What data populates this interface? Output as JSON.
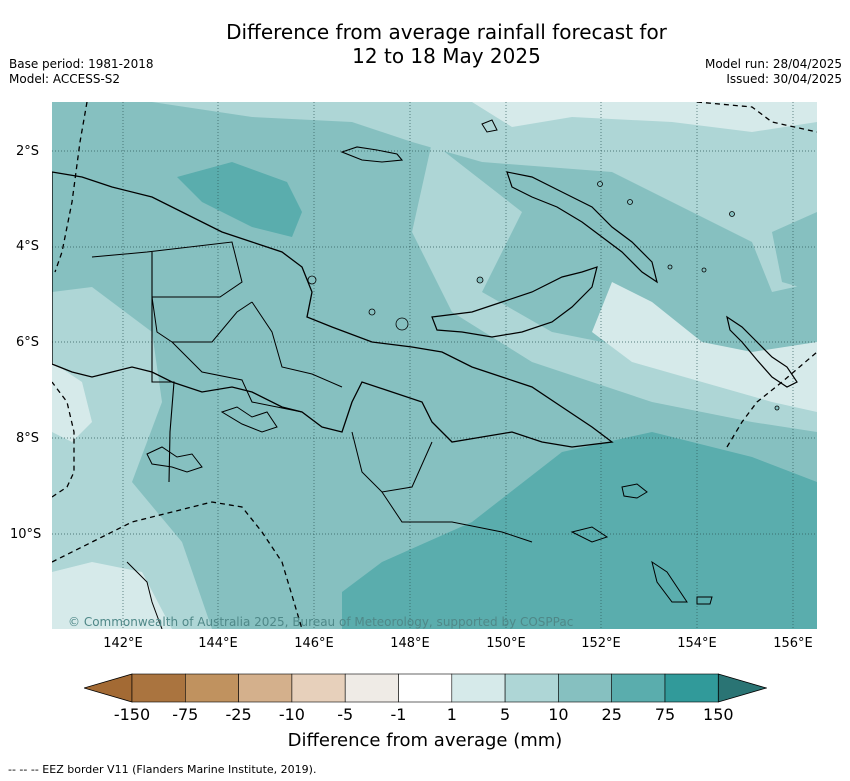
{
  "title": {
    "line1": "Difference from average rainfall forecast for",
    "line2": "12 to 18 May 2025"
  },
  "meta": {
    "base_period": "Base period: 1981-2018",
    "model": "Model: ACCESS-S2",
    "model_run": "Model run: 28/04/2025",
    "issued": "Issued: 30/04/2025"
  },
  "map": {
    "credit": "© Commonwealth of Australia 2025, Bureau of Meteorology, supported by COSPPac",
    "lat_labels": [
      "2°S",
      "4°S",
      "6°S",
      "8°S",
      "10°S"
    ],
    "lon_labels": [
      "142°E",
      "144°E",
      "146°E",
      "148°E",
      "150°E",
      "152°E",
      "154°E",
      "156°E"
    ]
  },
  "colorbar": {
    "title": "Difference from average (mm)",
    "tick_labels": [
      "-150",
      "-75",
      "-25",
      "-10",
      "-5",
      "-1",
      "1",
      "5",
      "10",
      "25",
      "75",
      "150"
    ],
    "colors": [
      "#a36a34",
      "#aa743f",
      "#c0925f",
      "#d4b08c",
      "#e7d0bb",
      "#efebe6",
      "#ffffff",
      "#d6eaea",
      "#aed6d6",
      "#86c0c0",
      "#5aadad",
      "#319a9a",
      "#2a7474"
    ]
  },
  "footer": {
    "eez_note": "--  --  -- EEZ border V11 (Flanders Marine Institute, 2019)."
  }
}
